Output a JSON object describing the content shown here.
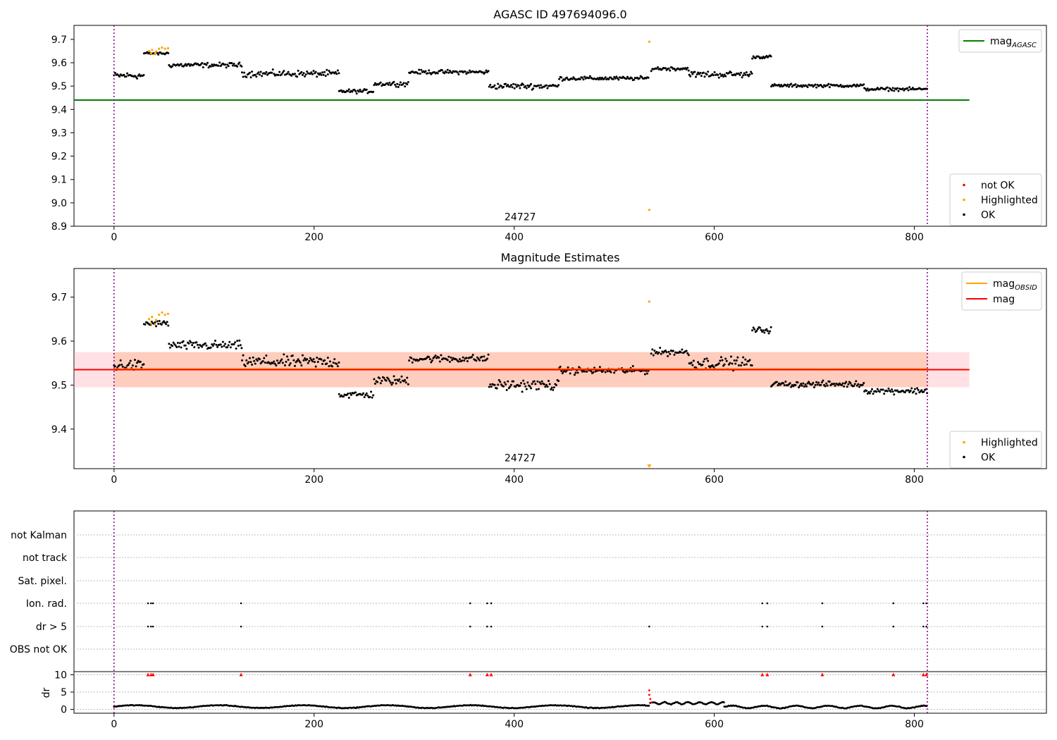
{
  "chart_data": [
    {
      "type": "scatter",
      "title": "AGASC ID 497694096.0",
      "xlim": [
        -40,
        932
      ],
      "ylim": [
        8.9,
        9.76
      ],
      "xticks": [
        "0",
        "200",
        "400",
        "600",
        "800"
      ],
      "yticks": [
        "8.9",
        "9.0",
        "9.1",
        "9.2",
        "9.3",
        "9.4",
        "9.5",
        "9.6",
        "9.7"
      ],
      "vlines_x": [
        0,
        813
      ],
      "hline": {
        "name": "mag",
        "subscript": "AGASC",
        "value": 9.44,
        "x_end": 855,
        "color": "#008000"
      },
      "annotation": {
        "text": "24727",
        "x": 406,
        "y": 8.925
      },
      "legend_top": [
        {
          "label": "mag",
          "subscript": "AGASC",
          "color": "#008000",
          "kind": "line"
        }
      ],
      "legend_bottom": [
        {
          "label": "not OK",
          "color": "#ff0000",
          "kind": "dot"
        },
        {
          "label": "Highlighted",
          "color": "#ffa500",
          "kind": "dot"
        },
        {
          "label": "OK",
          "color": "#000000",
          "kind": "dot"
        }
      ],
      "highlighted_points": [
        [
          35,
          9.65
        ],
        [
          38,
          9.655
        ],
        [
          42,
          9.648
        ],
        [
          45,
          9.66
        ],
        [
          48,
          9.665
        ],
        [
          51,
          9.66
        ],
        [
          54,
          9.662
        ],
        [
          37,
          9.64
        ],
        [
          41,
          9.638
        ],
        [
          535,
          9.69
        ],
        [
          535,
          8.97
        ]
      ],
      "segments": [
        {
          "x": [
            0,
            30
          ],
          "mean": 9.545,
          "spread": 0.02
        },
        {
          "x": [
            30,
            55
          ],
          "mean": 9.64,
          "spread": 0.01
        },
        {
          "x": [
            55,
            128
          ],
          "mean": 9.59,
          "spread": 0.015
        },
        {
          "x": [
            128,
            225
          ],
          "mean": 9.553,
          "spread": 0.02
        },
        {
          "x": [
            225,
            260
          ],
          "mean": 9.478,
          "spread": 0.012
        },
        {
          "x": [
            260,
            295
          ],
          "mean": 9.51,
          "spread": 0.015
        },
        {
          "x": [
            295,
            375
          ],
          "mean": 9.56,
          "spread": 0.013
        },
        {
          "x": [
            375,
            445
          ],
          "mean": 9.5,
          "spread": 0.018
        },
        {
          "x": [
            445,
            535
          ],
          "mean": 9.533,
          "spread": 0.012
        },
        {
          "x": [
            537,
            575
          ],
          "mean": 9.575,
          "spread": 0.012
        },
        {
          "x": [
            575,
            638
          ],
          "mean": 9.55,
          "spread": 0.02
        },
        {
          "x": [
            638,
            657
          ],
          "mean": 9.625,
          "spread": 0.01
        },
        {
          "x": [
            657,
            750
          ],
          "mean": 9.502,
          "spread": 0.01
        },
        {
          "x": [
            750,
            813
          ],
          "mean": 9.487,
          "spread": 0.01
        }
      ]
    },
    {
      "type": "scatter",
      "title": "Magnitude Estimates",
      "xlim": [
        -40,
        932
      ],
      "ylim": [
        9.31,
        9.765
      ],
      "xticks": [
        "0",
        "200",
        "400",
        "600",
        "800"
      ],
      "yticks": [
        "9.4",
        "9.5",
        "9.6",
        "9.7"
      ],
      "vlines_x": [
        0,
        813
      ],
      "mag_line": {
        "name": "mag",
        "value": 9.535,
        "color": "#ff0000"
      },
      "mag_obsid_line": {
        "name": "mag",
        "subscript": "OBSID",
        "value": 9.535,
        "color": "#ffa500"
      },
      "band_red": [
        9.495,
        9.575
      ],
      "band_orange": [
        9.495,
        9.575
      ],
      "annotation": {
        "text": "24727",
        "x": 406,
        "y": 9.327
      },
      "legend_top": [
        {
          "label": "mag",
          "subscript": "OBSID",
          "color": "#ffa500",
          "kind": "line"
        },
        {
          "label": "mag",
          "subscript": "",
          "color": "#ff0000",
          "kind": "line"
        }
      ],
      "legend_bottom": [
        {
          "label": "Highlighted",
          "color": "#ffa500",
          "kind": "dot"
        },
        {
          "label": "OK",
          "color": "#000000",
          "kind": "dot"
        }
      ]
    },
    {
      "type": "scatter",
      "title": "",
      "xlim": [
        -40,
        932
      ],
      "xticks": [
        "0",
        "200",
        "400",
        "600",
        "800"
      ],
      "flag_rows": [
        "not Kalman",
        "not track",
        "Sat. pixel.",
        "Ion. rad.",
        "dr > 5",
        "OBS not OK"
      ],
      "flags": {
        "Ion. rad.": [
          34,
          37,
          39,
          127,
          356,
          373,
          377,
          648,
          653,
          708,
          779,
          809,
          812
        ],
        "dr > 5": [
          34,
          37,
          39,
          127,
          356,
          373,
          377,
          535,
          648,
          653,
          708,
          779,
          809,
          812
        ]
      },
      "dr_axis": {
        "ylabel": "dr",
        "yticks": [
          "0",
          "5",
          "10"
        ],
        "ylim": [
          -0.5,
          10.5
        ]
      },
      "dr_capped_x": [
        34,
        37,
        39,
        127,
        356,
        373,
        377,
        648,
        653,
        708,
        779,
        809,
        812
      ],
      "dr_spikes": [
        [
          535,
          5.5
        ],
        [
          535,
          4.2
        ],
        [
          536,
          3.0
        ],
        [
          537,
          2.0
        ]
      ],
      "dr_segments": [
        {
          "x": [
            0,
            535
          ],
          "mean": 0.8,
          "spread": 0.4
        },
        {
          "x": [
            536,
            610
          ],
          "mean": 1.8,
          "spread": 0.3
        },
        {
          "x": [
            610,
            813
          ],
          "mean": 0.7,
          "spread": 0.35
        }
      ]
    }
  ]
}
